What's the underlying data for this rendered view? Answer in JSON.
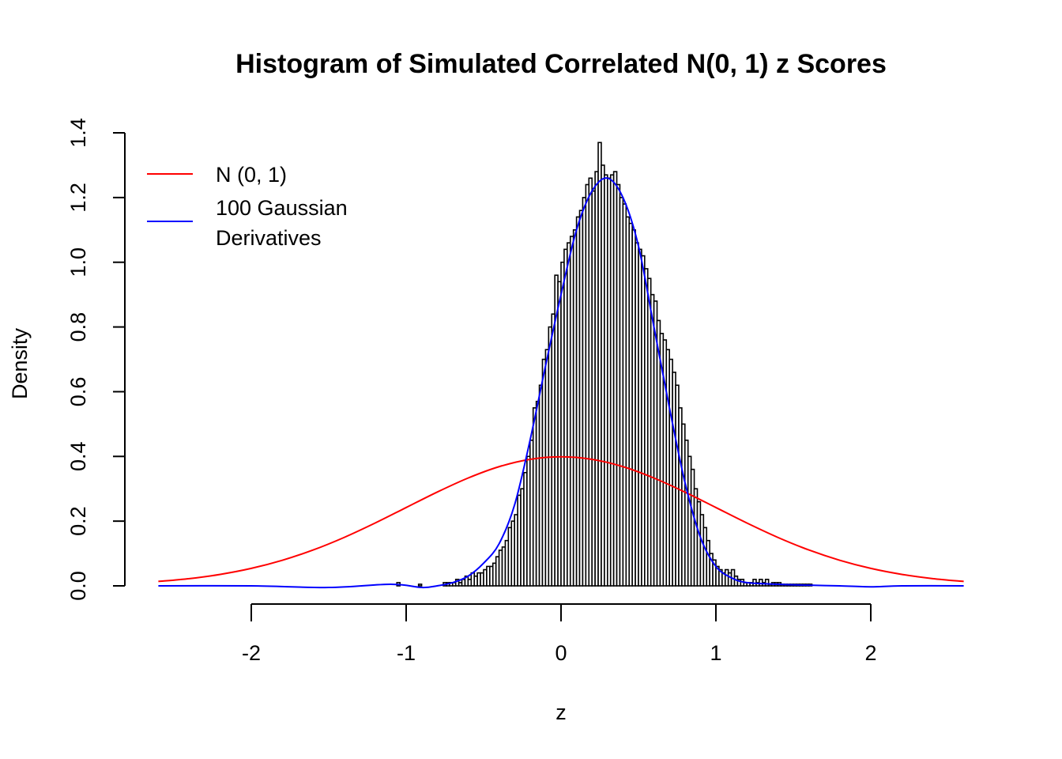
{
  "chart_data": {
    "type": "bar",
    "title": "Histogram of Simulated Correlated N(0, 1) z Scores",
    "xlabel": "z",
    "ylabel": "Density",
    "xlim": [
      -2.6,
      2.6
    ],
    "ylim": [
      0,
      1.4
    ],
    "x_ticks": [
      "-2",
      "-1",
      "0",
      "1",
      "2"
    ],
    "y_ticks": [
      "0.0",
      "0.2",
      "0.4",
      "0.6",
      "0.8",
      "1.0",
      "1.2",
      "1.4"
    ],
    "grid": false,
    "legend_position": "top-left",
    "histogram": {
      "bin_width": 0.02,
      "bins": [
        [
          -1.06,
          0.01
        ],
        [
          -0.92,
          0.005
        ],
        [
          -0.76,
          0.01
        ],
        [
          -0.74,
          0.01
        ],
        [
          -0.72,
          0.01
        ],
        [
          -0.7,
          0.01
        ],
        [
          -0.68,
          0.02
        ],
        [
          -0.66,
          0.01
        ],
        [
          -0.64,
          0.02
        ],
        [
          -0.62,
          0.03
        ],
        [
          -0.6,
          0.02
        ],
        [
          -0.58,
          0.04
        ],
        [
          -0.56,
          0.03
        ],
        [
          -0.54,
          0.04
        ],
        [
          -0.52,
          0.04
        ],
        [
          -0.5,
          0.05
        ],
        [
          -0.48,
          0.06
        ],
        [
          -0.46,
          0.06
        ],
        [
          -0.44,
          0.07
        ],
        [
          -0.42,
          0.09
        ],
        [
          -0.4,
          0.11
        ],
        [
          -0.38,
          0.12
        ],
        [
          -0.36,
          0.14
        ],
        [
          -0.34,
          0.18
        ],
        [
          -0.32,
          0.2
        ],
        [
          -0.3,
          0.22
        ],
        [
          -0.28,
          0.28
        ],
        [
          -0.26,
          0.3
        ],
        [
          -0.24,
          0.35
        ],
        [
          -0.22,
          0.4
        ],
        [
          -0.2,
          0.45
        ],
        [
          -0.18,
          0.55
        ],
        [
          -0.16,
          0.57
        ],
        [
          -0.14,
          0.62
        ],
        [
          -0.12,
          0.7
        ],
        [
          -0.1,
          0.73
        ],
        [
          -0.08,
          0.8
        ],
        [
          -0.06,
          0.84
        ],
        [
          -0.04,
          0.96
        ],
        [
          -0.02,
          0.94
        ],
        [
          0.0,
          1.0
        ],
        [
          0.02,
          1.04
        ],
        [
          0.04,
          1.06
        ],
        [
          0.06,
          1.08
        ],
        [
          0.08,
          1.1
        ],
        [
          0.1,
          1.14
        ],
        [
          0.12,
          1.16
        ],
        [
          0.14,
          1.2
        ],
        [
          0.16,
          1.24
        ],
        [
          0.18,
          1.26
        ],
        [
          0.2,
          1.22
        ],
        [
          0.22,
          1.28
        ],
        [
          0.24,
          1.37
        ],
        [
          0.26,
          1.3
        ],
        [
          0.28,
          1.27
        ],
        [
          0.3,
          1.26
        ],
        [
          0.32,
          1.27
        ],
        [
          0.34,
          1.28
        ],
        [
          0.36,
          1.24
        ],
        [
          0.38,
          1.2
        ],
        [
          0.4,
          1.18
        ],
        [
          0.42,
          1.14
        ],
        [
          0.44,
          1.12
        ],
        [
          0.46,
          1.1
        ],
        [
          0.48,
          1.06
        ],
        [
          0.5,
          1.04
        ],
        [
          0.52,
          1.02
        ],
        [
          0.54,
          0.98
        ],
        [
          0.56,
          0.95
        ],
        [
          0.58,
          0.9
        ],
        [
          0.6,
          0.88
        ],
        [
          0.62,
          0.82
        ],
        [
          0.64,
          0.78
        ],
        [
          0.66,
          0.76
        ],
        [
          0.68,
          0.73
        ],
        [
          0.7,
          0.7
        ],
        [
          0.72,
          0.66
        ],
        [
          0.74,
          0.62
        ],
        [
          0.76,
          0.55
        ],
        [
          0.78,
          0.5
        ],
        [
          0.8,
          0.45
        ],
        [
          0.82,
          0.4
        ],
        [
          0.84,
          0.36
        ],
        [
          0.86,
          0.3
        ],
        [
          0.88,
          0.26
        ],
        [
          0.9,
          0.22
        ],
        [
          0.92,
          0.18
        ],
        [
          0.94,
          0.14
        ],
        [
          0.96,
          0.1
        ],
        [
          0.98,
          0.08
        ],
        [
          1.0,
          0.06
        ],
        [
          1.02,
          0.05
        ],
        [
          1.04,
          0.04
        ],
        [
          1.06,
          0.05
        ],
        [
          1.08,
          0.04
        ],
        [
          1.1,
          0.05
        ],
        [
          1.12,
          0.03
        ],
        [
          1.14,
          0.02
        ],
        [
          1.16,
          0.02
        ],
        [
          1.18,
          0.01
        ],
        [
          1.2,
          0.01
        ],
        [
          1.22,
          0.01
        ],
        [
          1.24,
          0.02
        ],
        [
          1.26,
          0.01
        ],
        [
          1.28,
          0.02
        ],
        [
          1.3,
          0.01
        ],
        [
          1.32,
          0.02
        ],
        [
          1.34,
          0.005
        ],
        [
          1.36,
          0.01
        ],
        [
          1.38,
          0.01
        ],
        [
          1.4,
          0.01
        ],
        [
          1.42,
          0.005
        ],
        [
          1.44,
          0.005
        ],
        [
          1.46,
          0.005
        ],
        [
          1.48,
          0.005
        ],
        [
          1.5,
          0.005
        ],
        [
          1.52,
          0.005
        ],
        [
          1.54,
          0.005
        ],
        [
          1.56,
          0.005
        ],
        [
          1.58,
          0.005
        ],
        [
          1.6,
          0.005
        ]
      ]
    },
    "series": [
      {
        "name": "N (0, 1)",
        "color": "#ff0000",
        "x": [
          -2.6,
          -2.4,
          -2.2,
          -2.0,
          -1.8,
          -1.6,
          -1.4,
          -1.2,
          -1.0,
          -0.8,
          -0.6,
          -0.4,
          -0.2,
          0.0,
          0.2,
          0.4,
          0.6,
          0.8,
          1.0,
          1.2,
          1.4,
          1.6,
          1.8,
          2.0,
          2.2,
          2.4,
          2.6
        ],
        "y": [
          0.0136,
          0.0224,
          0.0355,
          0.054,
          0.079,
          0.1109,
          0.1497,
          0.1942,
          0.242,
          0.2897,
          0.3332,
          0.3683,
          0.391,
          0.3989,
          0.391,
          0.3683,
          0.3332,
          0.2897,
          0.242,
          0.1942,
          0.1497,
          0.1109,
          0.079,
          0.054,
          0.0355,
          0.0224,
          0.0136
        ]
      },
      {
        "name": "100 Gaussian\nDerivatives",
        "color": "#0000ff",
        "x": [
          -2.6,
          -2.0,
          -1.5,
          -1.1,
          -0.9,
          -0.8,
          -0.7,
          -0.6,
          -0.5,
          -0.4,
          -0.3,
          -0.2,
          -0.1,
          0.0,
          0.1,
          0.2,
          0.3,
          0.4,
          0.5,
          0.6,
          0.7,
          0.8,
          0.9,
          1.0,
          1.1,
          1.2,
          1.4,
          1.6,
          1.8,
          2.0,
          2.2,
          2.6
        ],
        "y": [
          0.0,
          0.0,
          -0.005,
          0.005,
          -0.005,
          0.0,
          0.01,
          0.03,
          0.07,
          0.13,
          0.25,
          0.45,
          0.68,
          0.9,
          1.1,
          1.22,
          1.26,
          1.2,
          1.05,
          0.8,
          0.55,
          0.32,
          0.15,
          0.06,
          0.025,
          0.01,
          0.005,
          0.002,
          0.0,
          -0.003,
          0.0,
          0.0
        ]
      }
    ]
  }
}
